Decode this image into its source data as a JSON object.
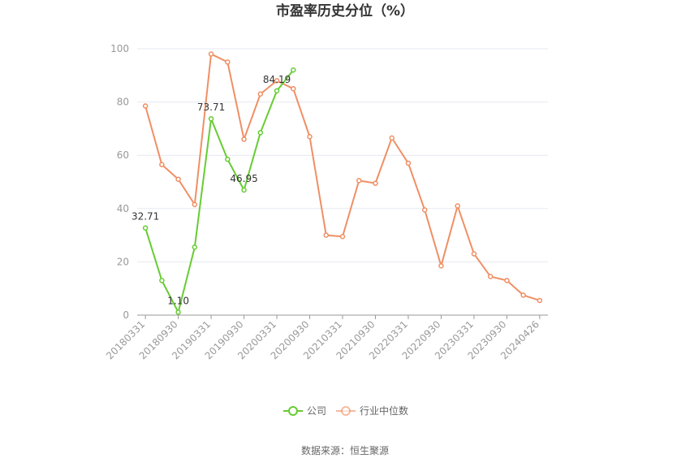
{
  "chart_data": {
    "type": "line",
    "title": "市盈率历史分位（%）",
    "xlabel": "",
    "ylabel": "",
    "ylim": [
      0,
      100
    ],
    "yticks": [
      "0",
      "20",
      "40",
      "60",
      "80",
      "100"
    ],
    "x": [
      "20180331",
      "20180630",
      "20180930",
      "20181231",
      "20190331",
      "20190630",
      "20190930",
      "20191231",
      "20200331",
      "20200630",
      "20200930",
      "20201231",
      "20210331",
      "20210630",
      "20210930",
      "20211231",
      "20220331",
      "20220630",
      "20220930",
      "20221231",
      "20230331",
      "20230630",
      "20230930",
      "20231231",
      "20240426"
    ],
    "xtick_labels": [
      "20180331",
      "20180930",
      "20190331",
      "20190930",
      "20200331",
      "20200930",
      "20210331",
      "20210930",
      "20220331",
      "20220930",
      "20230331",
      "20230930",
      "20240426"
    ],
    "xtick_indices": [
      0,
      2,
      4,
      6,
      8,
      10,
      12,
      14,
      16,
      18,
      20,
      22,
      24
    ],
    "series": [
      {
        "name": "公司",
        "color": "#66cc33",
        "values": [
          32.71,
          13.0,
          1.1,
          25.5,
          73.71,
          58.5,
          46.95,
          68.5,
          84.19,
          92.0,
          null,
          null,
          null,
          null,
          null,
          null,
          null,
          null,
          null,
          null,
          null,
          null,
          null,
          null,
          null
        ]
      },
      {
        "name": "行业中位数",
        "color": "#f08f65",
        "values": [
          78.5,
          56.5,
          51.0,
          41.5,
          98.0,
          95.0,
          66.0,
          83.0,
          88.0,
          85.0,
          67.0,
          30.0,
          29.5,
          50.5,
          49.5,
          66.5,
          57.0,
          39.5,
          18.5,
          41.0,
          23.0,
          14.5,
          13.0,
          7.5,
          5.5
        ]
      }
    ],
    "data_labels": [
      {
        "series": 0,
        "index": 0,
        "text": "32.71"
      },
      {
        "series": 0,
        "index": 2,
        "text": "1.10"
      },
      {
        "series": 0,
        "index": 4,
        "text": "73.71"
      },
      {
        "series": 0,
        "index": 6,
        "text": "46.95"
      },
      {
        "series": 0,
        "index": 8,
        "text": "84.19"
      }
    ],
    "grid": true,
    "legend_position": "bottom-center"
  },
  "source_text": "数据来源：恒生聚源"
}
